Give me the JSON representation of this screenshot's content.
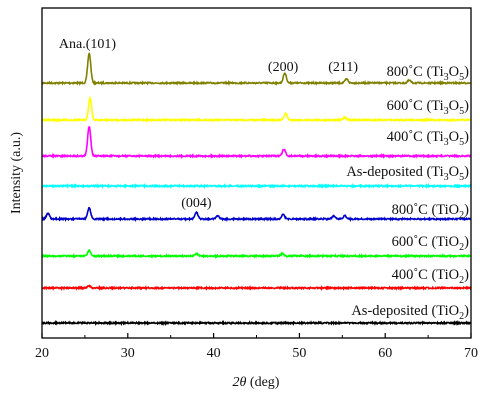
{
  "chart_data": {
    "type": "line",
    "xlabel_italic": "2θ",
    "xlabel_unit": " (deg)",
    "ylabel": "Intensity (a.u.)",
    "xlim": [
      20,
      70
    ],
    "xticks": [
      20,
      30,
      40,
      50,
      60,
      70
    ],
    "grid": false,
    "legend": "none; series labeled inline above each trace",
    "annotations": [
      {
        "text": "Ana.(101)",
        "x": 25.3
      },
      {
        "text": "(200)",
        "x": 48.1
      },
      {
        "text": "(211)",
        "x": 55.1
      },
      {
        "text": "(004)",
        "x": 38.0
      }
    ],
    "series": [
      {
        "label_pre": "800˚C (Ti",
        "sub1": "3",
        "mid": "O",
        "sub2": "5",
        "label_post": ")",
        "color": "#808000",
        "peaks": [
          {
            "x": 25.5,
            "height": 1.35
          },
          {
            "x": 48.3,
            "height": 0.45
          },
          {
            "x": 55.5,
            "height": 0.18
          },
          {
            "x": 62.8,
            "height": 0.12
          }
        ]
      },
      {
        "label_pre": "600˚C (Ti",
        "sub1": "3",
        "mid": "O",
        "sub2": "5",
        "label_post": ")",
        "color": "#ffff00",
        "peaks": [
          {
            "x": 25.6,
            "height": 1.0
          },
          {
            "x": 48.4,
            "height": 0.3
          },
          {
            "x": 55.3,
            "height": 0.12
          }
        ]
      },
      {
        "label_pre": "400˚C (Ti",
        "sub1": "3",
        "mid": "O",
        "sub2": "5",
        "label_post": ")",
        "color": "#ff00ff",
        "peaks": [
          {
            "x": 25.5,
            "height": 1.35
          },
          {
            "x": 48.2,
            "height": 0.3
          }
        ]
      },
      {
        "label_pre": "As-deposited (Ti",
        "sub1": "3",
        "mid": "O",
        "sub2": "5",
        "label_post": ")",
        "color": "#00ffff",
        "peaks": []
      },
      {
        "label_pre": "800˚C (TiO",
        "sub1": "2",
        "mid": "",
        "sub2": "",
        "label_post": ")",
        "color": "#0000cc",
        "peaks": [
          {
            "x": 20.7,
            "height": 0.25
          },
          {
            "x": 25.5,
            "height": 0.5
          },
          {
            "x": 38.0,
            "height": 0.3
          },
          {
            "x": 40.5,
            "height": 0.15
          },
          {
            "x": 48.1,
            "height": 0.2
          },
          {
            "x": 54.0,
            "height": 0.15
          },
          {
            "x": 55.3,
            "height": 0.15
          }
        ]
      },
      {
        "label_pre": "600˚C (TiO",
        "sub1": "2",
        "mid": "",
        "sub2": "",
        "label_post": ")",
        "color": "#00ff00",
        "peaks": [
          {
            "x": 25.5,
            "height": 0.25
          },
          {
            "x": 38.0,
            "height": 0.12
          },
          {
            "x": 48.0,
            "height": 0.1
          }
        ]
      },
      {
        "label_pre": "400˚C (TiO",
        "sub1": "2",
        "mid": "",
        "sub2": "",
        "label_post": ")",
        "color": "#ff0000",
        "peaks": [
          {
            "x": 25.5,
            "height": 0.1
          }
        ]
      },
      {
        "label_pre": "As-deposited (TiO",
        "sub1": "2",
        "mid": "",
        "sub2": "",
        "label_post": ")",
        "color": "#000000",
        "peaks": []
      }
    ]
  }
}
